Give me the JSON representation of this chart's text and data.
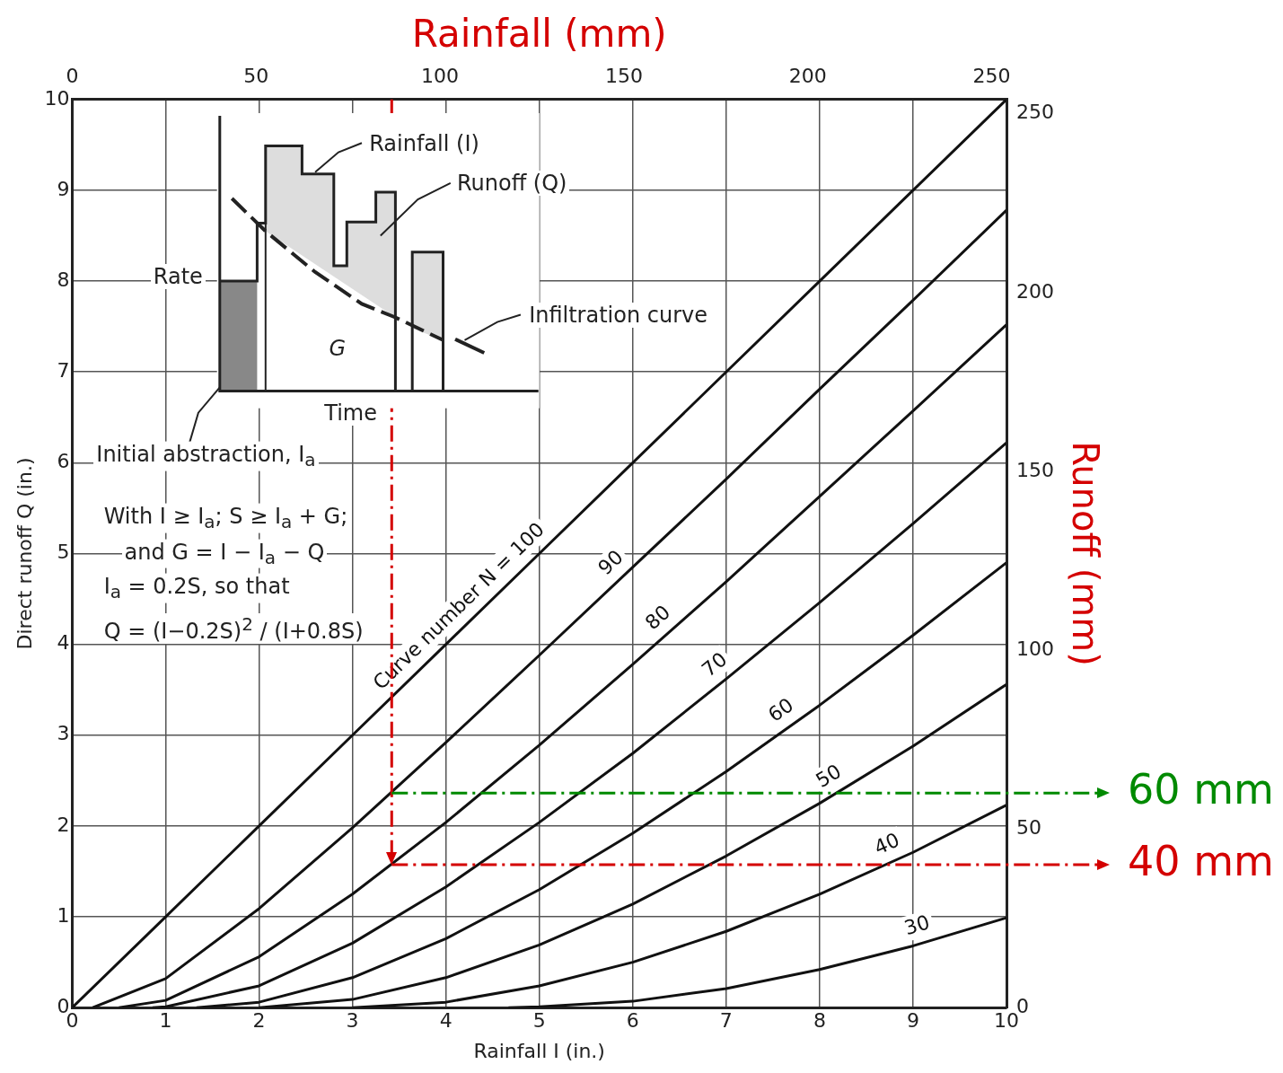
{
  "chart_data": {
    "type": "line",
    "xlabel": "Rainfall I (in.)",
    "ylabel": "Direct runoff Q (in.)",
    "x2label": "Rainfall (mm)",
    "y2label": "Runoff (mm)",
    "xlim": [
      0,
      10
    ],
    "xticks": [
      0,
      1,
      2,
      3,
      4,
      5,
      6,
      7,
      8,
      9,
      10
    ],
    "ylim": [
      0,
      10
    ],
    "yticks": [
      0,
      1,
      2,
      3,
      4,
      5,
      6,
      7,
      8,
      9,
      10
    ],
    "x2lim": [
      0,
      254
    ],
    "x2ticks": [
      0,
      50,
      100,
      150,
      200,
      250
    ],
    "y2lim": [
      0,
      254
    ],
    "y2ticks": [
      0,
      50,
      100,
      150,
      200,
      250
    ],
    "grid": true,
    "legend": false,
    "marker": "none",
    "line_style": "solid",
    "series": [
      {
        "name": "Curve number N = 100",
        "color": "#111111",
        "x": [
          0,
          1,
          2,
          3,
          4,
          5,
          6,
          7,
          8,
          9,
          10
        ],
        "values": [
          0,
          1,
          2,
          3,
          4,
          5,
          6,
          7,
          8,
          9,
          10
        ]
      },
      {
        "name": "90",
        "color": "#111111",
        "x": [
          0.22,
          1,
          2,
          3,
          4,
          5,
          6,
          7,
          8,
          9,
          10
        ],
        "values": [
          0,
          0.32,
          1.09,
          1.98,
          2.92,
          3.88,
          4.85,
          5.82,
          6.81,
          7.79,
          8.78
        ]
      },
      {
        "name": "80",
        "color": "#111111",
        "x": [
          0.5,
          1,
          2,
          3,
          4,
          5,
          6,
          7,
          8,
          9,
          10
        ],
        "values": [
          0,
          0.08,
          0.56,
          1.25,
          2.04,
          2.89,
          3.78,
          4.69,
          5.63,
          6.57,
          7.52
        ]
      },
      {
        "name": "70",
        "color": "#111111",
        "x": [
          0.86,
          1,
          2,
          3,
          4,
          5,
          6,
          7,
          8,
          9,
          10
        ],
        "values": [
          0,
          0.01,
          0.24,
          0.71,
          1.33,
          2.04,
          2.8,
          3.62,
          4.46,
          5.33,
          6.22
        ]
      },
      {
        "name": "60",
        "color": "#111111",
        "x": [
          1.33,
          2,
          3,
          4,
          5,
          6,
          7,
          8,
          9,
          10
        ],
        "values": [
          0,
          0.06,
          0.33,
          0.76,
          1.3,
          1.92,
          2.6,
          3.33,
          4.1,
          4.9
        ]
      },
      {
        "name": "50",
        "color": "#111111",
        "x": [
          2,
          3,
          4,
          5,
          6,
          7,
          8,
          9,
          10
        ],
        "values": [
          0,
          0.09,
          0.33,
          0.69,
          1.14,
          1.67,
          2.25,
          2.88,
          3.56
        ]
      },
      {
        "name": "40",
        "color": "#111111",
        "x": [
          3,
          4,
          5,
          6,
          7,
          8,
          9,
          10
        ],
        "values": [
          0,
          0.06,
          0.24,
          0.5,
          0.84,
          1.25,
          1.71,
          2.23
        ]
      },
      {
        "name": "30",
        "color": "#111111",
        "x": [
          4.67,
          5,
          6,
          7,
          8,
          9,
          10
        ],
        "values": [
          0,
          0.01,
          0.07,
          0.21,
          0.42,
          0.68,
          0.99
        ]
      }
    ],
    "ref_lines": [
      {
        "axis": "x",
        "value": 3.42,
        "color": "#d40000",
        "line_style": "dashed"
      },
      {
        "axis": "y2",
        "value": 60,
        "label": "60 mm",
        "color": "#008a00",
        "line_style": "dashed"
      },
      {
        "axis": "y2",
        "value": 40,
        "label": "40 mm",
        "color": "#d40000",
        "line_style": "dashed"
      }
    ],
    "annotations": [
      "Rainfall (I)",
      "Runoff (Q)",
      "Rate",
      "G",
      "Time",
      "Infiltration curve",
      "Initial abstraction, I$_{a}$",
      "With I ≥ I$_{a}$; S ≥ I$_{a}$ + G;",
      "and G = I − I$_{a}$ − Q",
      "I$_{a}$ = 0.2S, so that",
      "Q = (I−0.2S)$^{2}$ / (I+0.8S)"
    ]
  }
}
